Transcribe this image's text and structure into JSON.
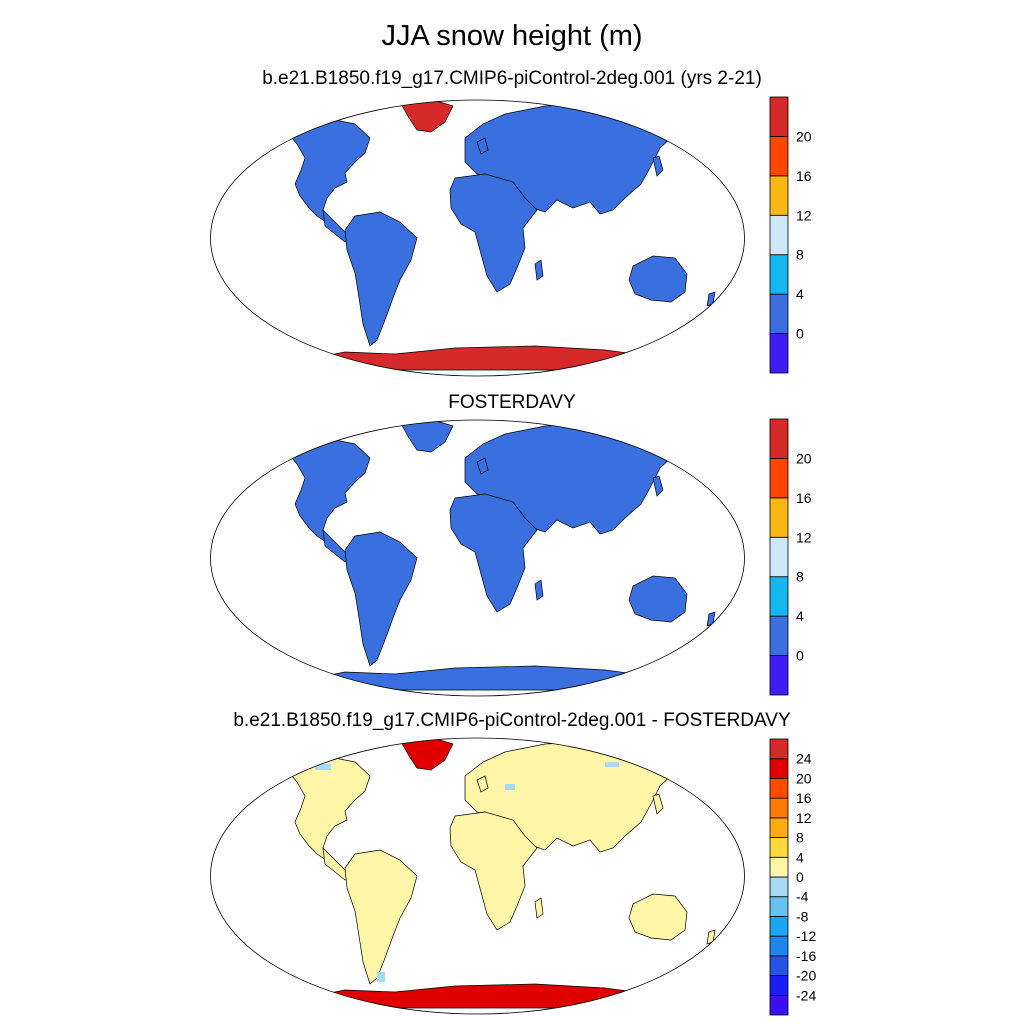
{
  "figure": {
    "title": "JJA snow height (m)"
  },
  "colors": {
    "land_default": "#3a6fe0",
    "ocean": "#ffffff",
    "diff_land": "#fff6a8",
    "antarctica_case": "#d62a2a",
    "antarctica_diff": "#e00000",
    "greenland_case": "#d62a2a",
    "greenland_diff": "#e00000"
  },
  "panels": [
    {
      "title": "b.e21.B1850.f19_g17.CMIP6-piControl-2deg.001 (yrs 2-21)",
      "variant": "case",
      "colorbar": {
        "colors": [
          "#3f1cf4",
          "#3a6fe0",
          "#17b5f2",
          "#cde8f7",
          "#fbb713",
          "#ff4500",
          "#d62a2a"
        ],
        "labels": [
          "0",
          "4",
          "8",
          "12",
          "16",
          "20"
        ]
      }
    },
    {
      "title": "FOSTERDAVY",
      "variant": "ref",
      "colorbar": {
        "colors": [
          "#3f1cf4",
          "#3a6fe0",
          "#17b5f2",
          "#cde8f7",
          "#fbb713",
          "#ff4500",
          "#d62a2a"
        ],
        "labels": [
          "0",
          "4",
          "8",
          "12",
          "16",
          "20"
        ]
      }
    },
    {
      "title": "b.e21.B1850.f19_g17.CMIP6-piControl-2deg.001 - FOSTERDAVY",
      "variant": "diff",
      "colorbar": {
        "colors": [
          "#3b0ff0",
          "#1a20f5",
          "#2355e8",
          "#1f86f0",
          "#1aa6f3",
          "#67c2ef",
          "#a6dbf2",
          "#fff6a8",
          "#ffd83a",
          "#ffaa12",
          "#ff7a00",
          "#ff4a00",
          "#e00000",
          "#d62a2a"
        ],
        "labels": [
          "-24",
          "-20",
          "-16",
          "-12",
          "-8",
          "-4",
          "0",
          "4",
          "8",
          "12",
          "16",
          "20",
          "24"
        ]
      }
    }
  ]
}
